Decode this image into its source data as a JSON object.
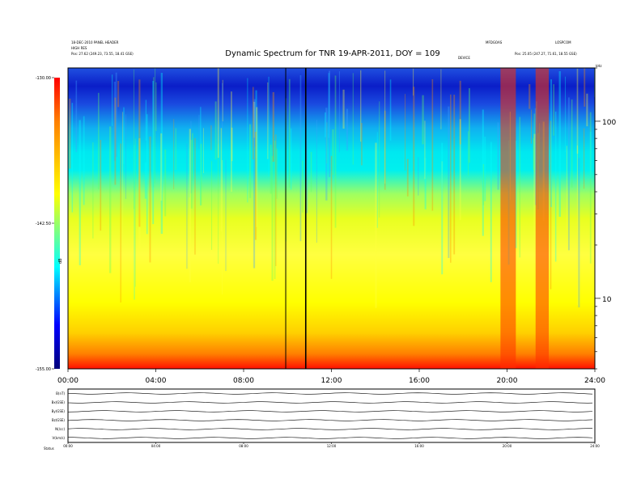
{
  "header": {
    "left_line1": "18-DEC-2010 PANEL HEADER",
    "left_line2": "HIGH RES",
    "left_line3": "Pos: 27.62 (249.23, 73.55, 18.41 GSE)",
    "right_line1": "MFDGOAS",
    "right_line2": "LOSPCOM",
    "right_line3": "Pos: 25.05 (247.27, 71.61, 18.55 GSE)",
    "mid_label": "DEVICE",
    "corner_label": "kHz"
  },
  "chart_data": {
    "type": "heatmap",
    "title": "Dynamic Spectrum for TNR 19-APR-2011, DOY = 109",
    "x_ticks": [
      "00:00",
      "04:00",
      "08:00",
      "12:00",
      "16:00",
      "20:00",
      "24:00"
    ],
    "xlim_hours": [
      0,
      24
    ],
    "y_scale": "log",
    "y_unit": "kHz",
    "y_ticks": [
      "100",
      "10"
    ],
    "y_range_khz": [
      4,
      200
    ],
    "colorbar": {
      "ticks": [
        "-130.00",
        "-142.50",
        "-155.00"
      ],
      "label": "dB",
      "range_db": [
        -155,
        -130
      ]
    },
    "features": [
      {
        "start_h": 9.9,
        "end_h": 9.93,
        "kind": "data gap"
      },
      {
        "start_h": 10.8,
        "end_h": 10.86,
        "kind": "data gap"
      },
      {
        "start_h": 19.7,
        "end_h": 20.4,
        "kind": "radio burst"
      },
      {
        "start_h": 21.3,
        "end_h": 21.9,
        "kind": "radio burst"
      }
    ]
  },
  "lower_panel": {
    "rows": [
      "B(nT)",
      "Bx(GSE)",
      "By(GSE)",
      "Bz(GSE)",
      "N(/cc)",
      "V(km/s)"
    ],
    "right_ticks": [
      "",
      "",
      "",
      "",
      "",
      ""
    ],
    "x_ticks": [
      "00:00",
      "04:00",
      "08:00",
      "12:00",
      "16:00",
      "20:00",
      "24:00"
    ],
    "footer_label": "Status"
  },
  "colors": {
    "map_low": "#0000b0",
    "map_mid": "#00e8f0",
    "map_high": "#ff0000"
  }
}
